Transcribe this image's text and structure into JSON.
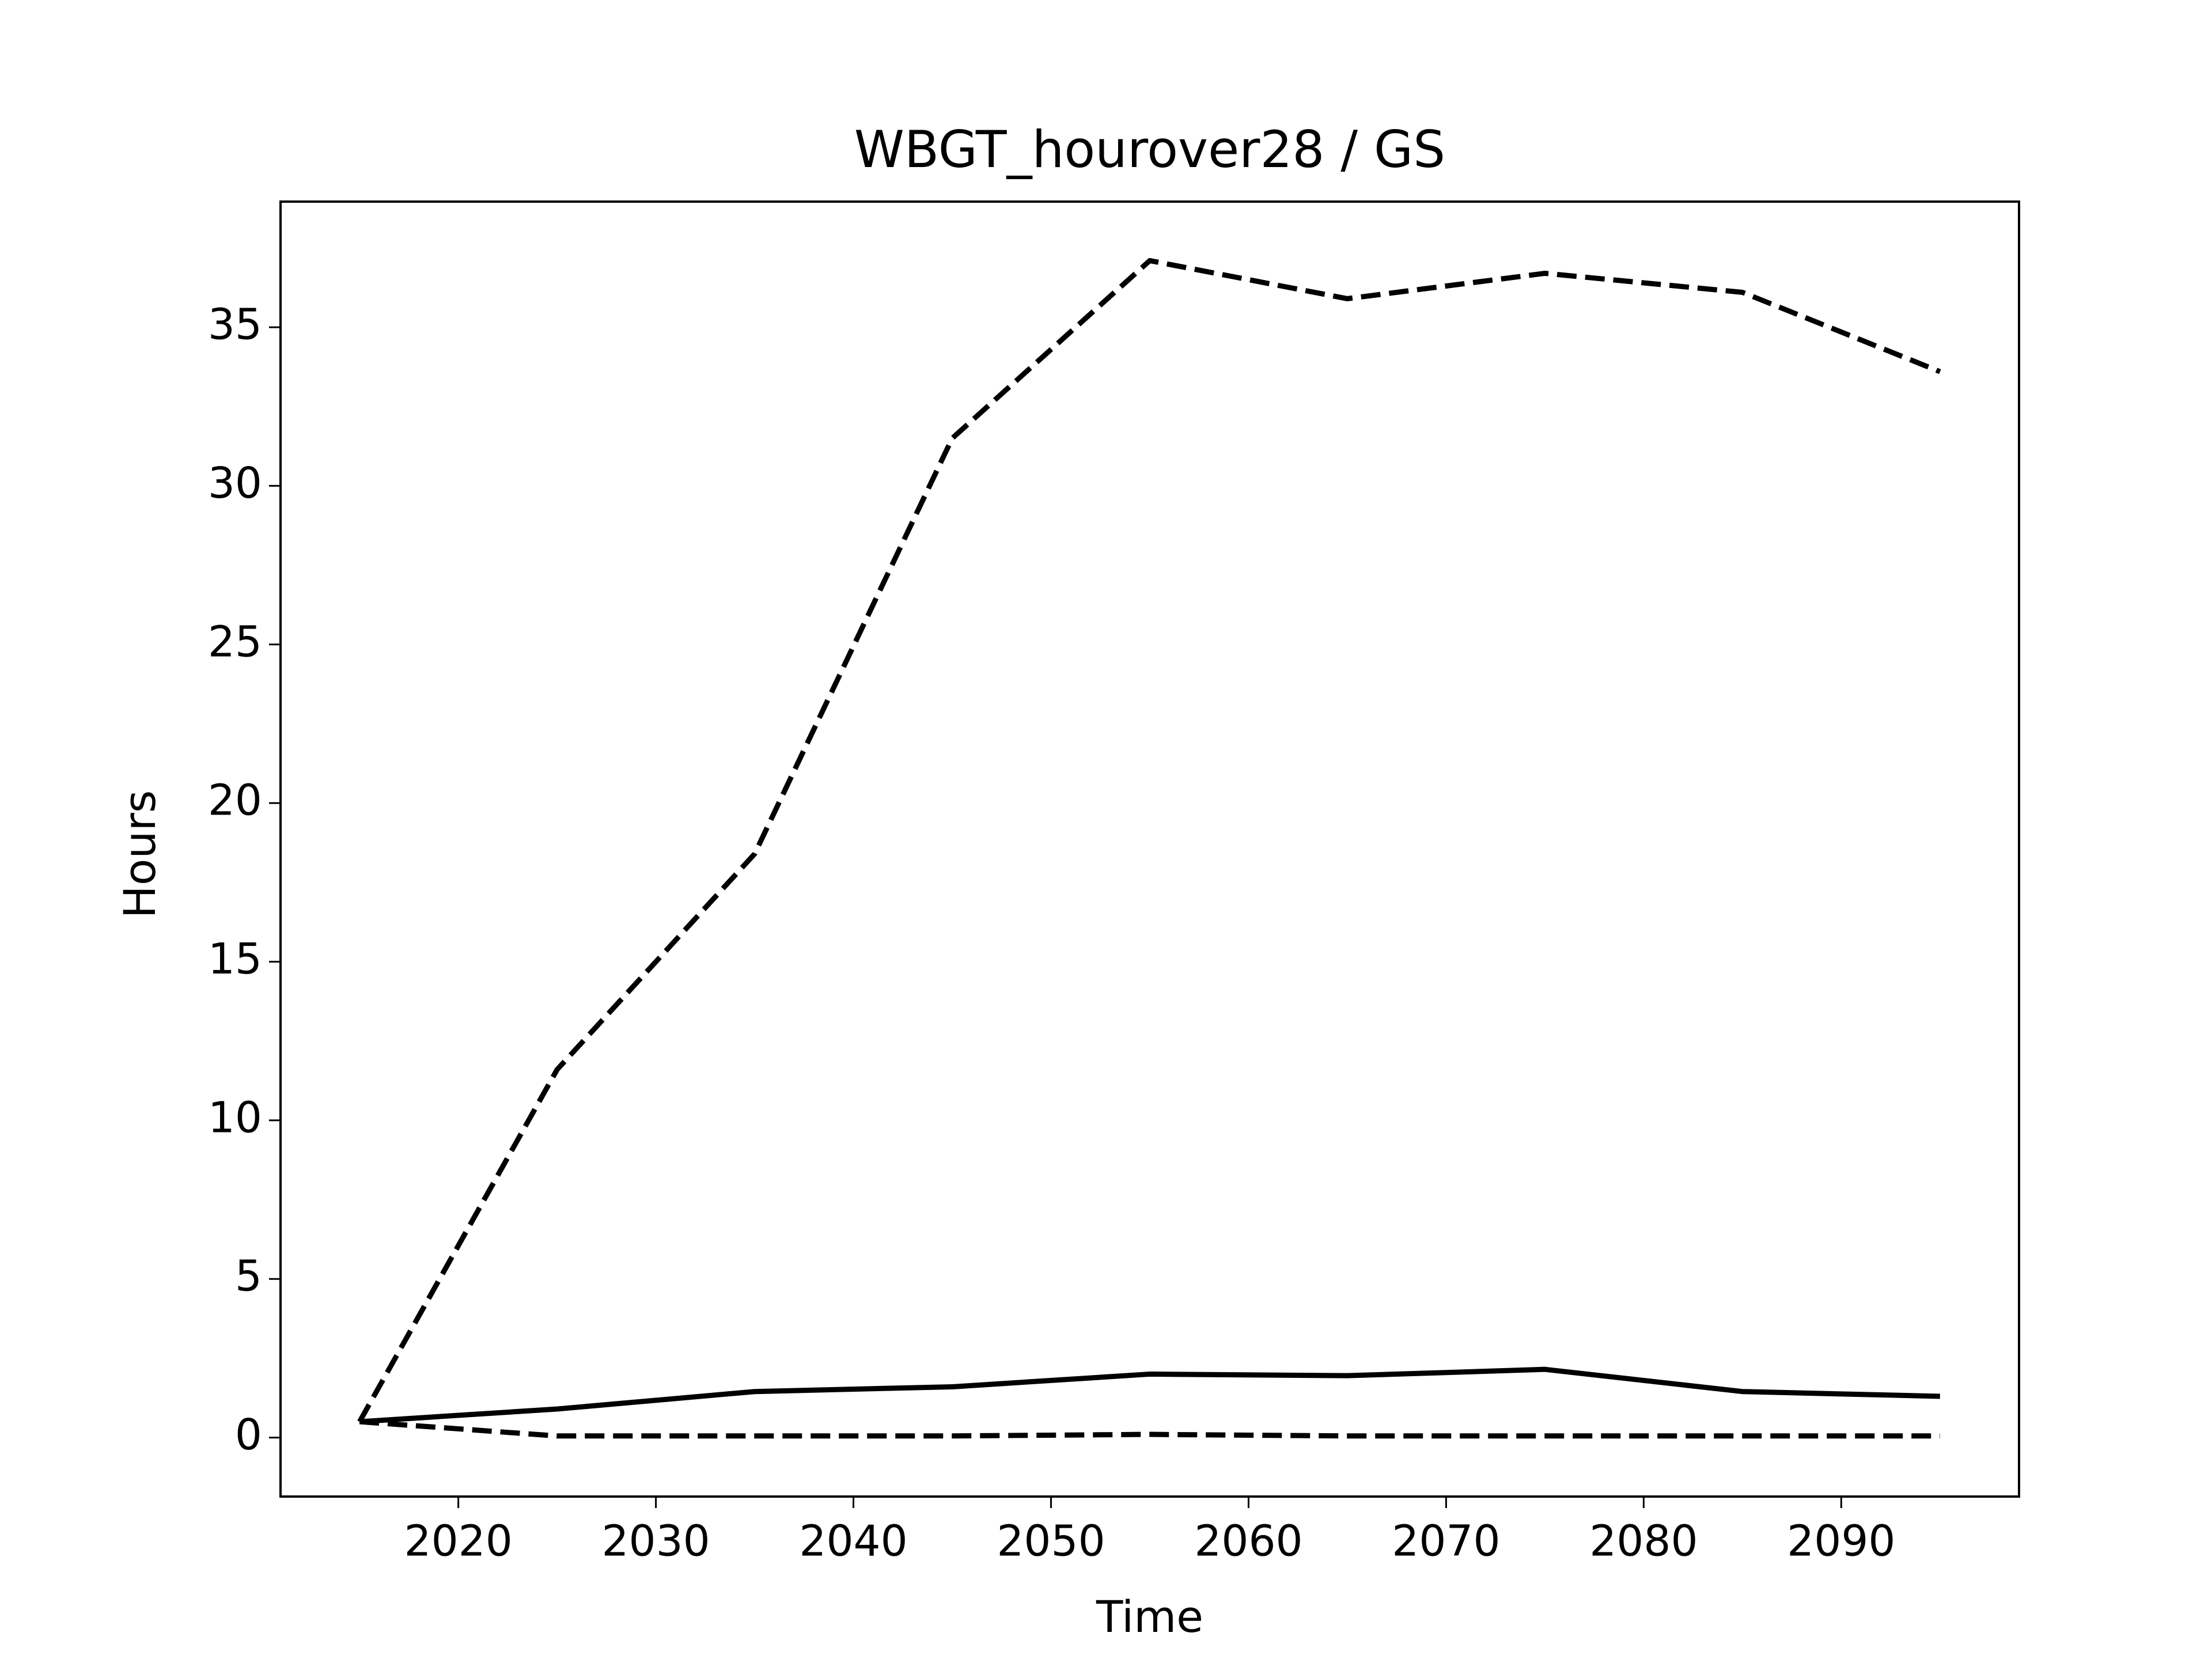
{
  "chart_data": {
    "type": "line",
    "title": "WBGT_hourover28 / GS",
    "xlabel": "Time",
    "ylabel": "Hours",
    "x": [
      2015,
      2025,
      2035,
      2045,
      2055,
      2065,
      2075,
      2085,
      2095
    ],
    "series": [
      {
        "color": "#000000",
        "dash": true,
        "values": [
          0.5,
          11.6,
          18.4,
          31.5,
          37.1,
          35.9,
          36.7,
          36.1,
          33.6
        ]
      },
      {
        "color": "#000000",
        "dash": false,
        "values": [
          0.5,
          0.9,
          1.45,
          1.6,
          2.0,
          1.95,
          2.15,
          1.45,
          1.3
        ]
      },
      {
        "color": "#000000",
        "dash": true,
        "values": [
          0.5,
          0.05,
          0.05,
          0.05,
          0.1,
          0.05,
          0.05,
          0.05,
          0.05
        ]
      }
    ],
    "xlim": [
      2011,
      2099
    ],
    "xticks": [
      2020,
      2030,
      2040,
      2050,
      2060,
      2070,
      2080,
      2090
    ],
    "ylim": [
      -1.86,
      38.96
    ],
    "yticks": [
      0,
      5,
      10,
      15,
      20,
      25,
      30,
      35
    ],
    "grid": false
  }
}
